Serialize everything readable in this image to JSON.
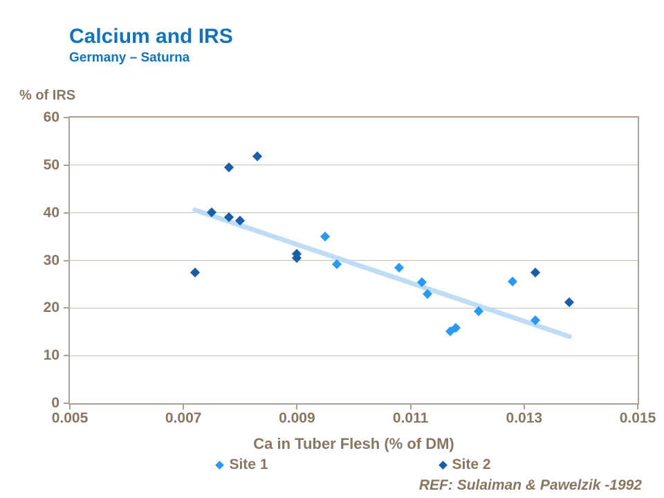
{
  "header": {
    "title": "Calcium and IRS",
    "subtitle": "Germany – Saturna"
  },
  "footer": {
    "ref": "REF: Sulaiman & Pawelzik -1992"
  },
  "colors": {
    "title_blue": "#1273BD",
    "label_brown": "#887661",
    "axis_border": "#ADA093",
    "gridline": "#C9BEB0",
    "site1": "#299AF3",
    "site2": "#1A5EA8",
    "trendline": "#BFDCF6"
  },
  "chart_data": {
    "type": "scatter",
    "title": "Calcium and IRS",
    "subtitle": "Germany – Saturna",
    "xlabel": "Ca in Tuber Flesh (% of DM)",
    "ylabel": "% of IRS",
    "xlim": [
      0.005,
      0.015
    ],
    "ylim": [
      0,
      60
    ],
    "x_ticks": [
      0.005,
      0.007,
      0.009,
      0.011,
      0.013,
      0.015
    ],
    "x_tick_labels": [
      "0.005",
      "0.007",
      "0.009",
      "0.011",
      "0.013",
      "0.015"
    ],
    "y_ticks": [
      0,
      10,
      20,
      30,
      40,
      50,
      60
    ],
    "grid": "horizontal-only",
    "legend_position": "bottom",
    "series": [
      {
        "name": "Site 1",
        "color": "#299AF3",
        "marker": "diamond",
        "points": [
          [
            0.0095,
            35.0
          ],
          [
            0.0097,
            29.2
          ],
          [
            0.0108,
            28.5
          ],
          [
            0.0112,
            25.4
          ],
          [
            0.0113,
            23.0
          ],
          [
            0.0117,
            15.1
          ],
          [
            0.0118,
            15.9
          ],
          [
            0.0122,
            19.3
          ],
          [
            0.0128,
            25.6
          ],
          [
            0.0132,
            17.5
          ]
        ]
      },
      {
        "name": "Site 2",
        "color": "#1A5EA8",
        "marker": "diamond",
        "points": [
          [
            0.0072,
            27.4
          ],
          [
            0.0075,
            40.1
          ],
          [
            0.0078,
            49.5
          ],
          [
            0.0078,
            39.1
          ],
          [
            0.008,
            38.4
          ],
          [
            0.0083,
            51.8
          ],
          [
            0.009,
            31.4
          ],
          [
            0.009,
            30.5
          ],
          [
            0.0132,
            27.4
          ],
          [
            0.0138,
            21.2
          ]
        ]
      }
    ],
    "trendline": {
      "color": "#BFDCF6",
      "width": 7,
      "x1": 0.0072,
      "y1": 40.6,
      "x2": 0.0138,
      "y2": 14.0
    }
  }
}
